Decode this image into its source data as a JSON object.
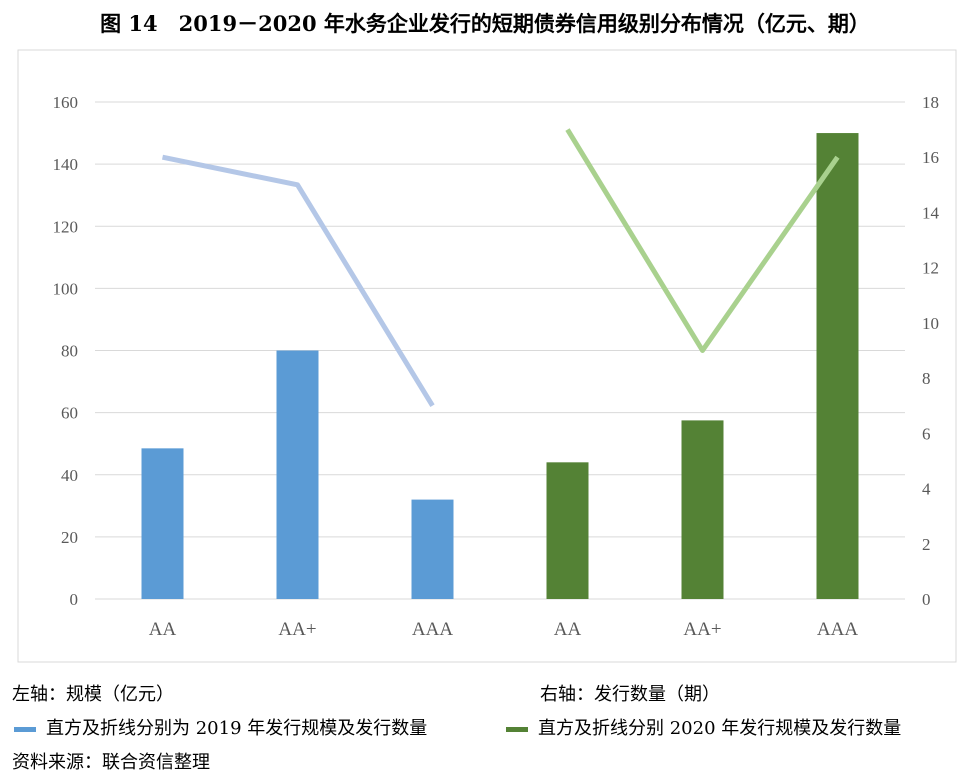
{
  "chart_data": {
    "type": "bar",
    "title": "图 14　2019－2020 年水务企业发行的短期债券信用级别分布情况（亿元、期）",
    "categories": [
      "AA",
      "AA+",
      "AAA",
      "AA",
      "AA+",
      "AAA"
    ],
    "series": [
      {
        "year": "2019",
        "kind": "bar",
        "axis": "left",
        "values": [
          48.5,
          80,
          32,
          null,
          null,
          null
        ],
        "color": "#5b9bd5"
      },
      {
        "year": "2020",
        "kind": "bar",
        "axis": "left",
        "values": [
          null,
          null,
          null,
          44,
          57.5,
          150
        ],
        "color": "#548235"
      },
      {
        "year": "2019",
        "kind": "line",
        "axis": "right",
        "values": [
          16,
          15,
          7,
          null,
          null,
          null
        ],
        "color": "#b4c7e7"
      },
      {
        "year": "2020",
        "kind": "line",
        "axis": "right",
        "values": [
          null,
          null,
          null,
          17,
          9,
          16
        ],
        "color": "#a9d18e"
      }
    ],
    "left_axis": {
      "range": [
        0,
        160
      ],
      "ticks": [
        "0",
        "20",
        "40",
        "60",
        "80",
        "100",
        "120",
        "140",
        "160"
      ]
    },
    "right_axis": {
      "range": [
        0,
        18
      ],
      "ticks": [
        "0",
        "2",
        "4",
        "6",
        "8",
        "10",
        "12",
        "14",
        "16",
        "18"
      ]
    },
    "grid": true
  },
  "notes": {
    "left_axis_label": "左轴：规模（亿元）",
    "right_axis_label": "右轴：发行数量（期）",
    "legend_2019": "直方及折线分别为 2019 年发行规模及发行数量",
    "legend_2020": "直方及折线分别 2020 年发行规模及发行数量",
    "source": "资料来源：联合资信整理",
    "legend_2019_color": "#5b9bd5",
    "legend_2020_color": "#548235"
  }
}
